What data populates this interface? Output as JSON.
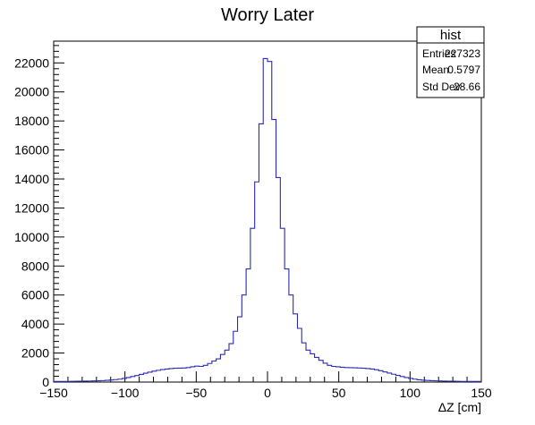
{
  "chart_data": {
    "type": "histogram",
    "title": "Worry Later",
    "xlabel": "ΔZ [cm]",
    "ylabel": "",
    "xlim": [
      -150,
      150
    ],
    "ylim": [
      0,
      23500
    ],
    "x_ticks": [
      -150,
      -100,
      -50,
      0,
      50,
      100,
      150
    ],
    "y_ticks": [
      0,
      2000,
      4000,
      6000,
      8000,
      10000,
      12000,
      14000,
      16000,
      18000,
      20000,
      22000
    ],
    "bin_width": 3,
    "line_color": "#2b2bb5",
    "bins": [
      {
        "x": -150,
        "y": 40
      },
      {
        "x": -147,
        "y": 40
      },
      {
        "x": -144,
        "y": 45
      },
      {
        "x": -141,
        "y": 45
      },
      {
        "x": -138,
        "y": 50
      },
      {
        "x": -135,
        "y": 55
      },
      {
        "x": -132,
        "y": 60
      },
      {
        "x": -129,
        "y": 65
      },
      {
        "x": -126,
        "y": 70
      },
      {
        "x": -123,
        "y": 80
      },
      {
        "x": -120,
        "y": 90
      },
      {
        "x": -117,
        "y": 100
      },
      {
        "x": -114,
        "y": 120
      },
      {
        "x": -111,
        "y": 140
      },
      {
        "x": -108,
        "y": 170
      },
      {
        "x": -105,
        "y": 200
      },
      {
        "x": -102,
        "y": 250
      },
      {
        "x": -99,
        "y": 310
      },
      {
        "x": -96,
        "y": 380
      },
      {
        "x": -93,
        "y": 450
      },
      {
        "x": -90,
        "y": 530
      },
      {
        "x": -87,
        "y": 610
      },
      {
        "x": -84,
        "y": 680
      },
      {
        "x": -81,
        "y": 750
      },
      {
        "x": -78,
        "y": 810
      },
      {
        "x": -75,
        "y": 860
      },
      {
        "x": -72,
        "y": 900
      },
      {
        "x": -69,
        "y": 930
      },
      {
        "x": -66,
        "y": 950
      },
      {
        "x": -63,
        "y": 960
      },
      {
        "x": -60,
        "y": 970
      },
      {
        "x": -57,
        "y": 1000
      },
      {
        "x": -54,
        "y": 1050
      },
      {
        "x": -51,
        "y": 1100
      },
      {
        "x": -48,
        "y": 1080
      },
      {
        "x": -45,
        "y": 1150
      },
      {
        "x": -42,
        "y": 1280
      },
      {
        "x": -39,
        "y": 1450
      },
      {
        "x": -36,
        "y": 1600
      },
      {
        "x": -33,
        "y": 1900
      },
      {
        "x": -30,
        "y": 2200
      },
      {
        "x": -27,
        "y": 2650
      },
      {
        "x": -24,
        "y": 3500
      },
      {
        "x": -21,
        "y": 4500
      },
      {
        "x": -18,
        "y": 6000
      },
      {
        "x": -15,
        "y": 7800
      },
      {
        "x": -12,
        "y": 10600
      },
      {
        "x": -9,
        "y": 13800
      },
      {
        "x": -6,
        "y": 17800
      },
      {
        "x": -3,
        "y": 22300
      },
      {
        "x": 0,
        "y": 22100
      },
      {
        "x": 3,
        "y": 18100
      },
      {
        "x": 6,
        "y": 14100
      },
      {
        "x": 9,
        "y": 10600
      },
      {
        "x": 12,
        "y": 7800
      },
      {
        "x": 15,
        "y": 6000
      },
      {
        "x": 18,
        "y": 4700
      },
      {
        "x": 21,
        "y": 3700
      },
      {
        "x": 24,
        "y": 2700
      },
      {
        "x": 27,
        "y": 2200
      },
      {
        "x": 30,
        "y": 1950
      },
      {
        "x": 33,
        "y": 1700
      },
      {
        "x": 36,
        "y": 1500
      },
      {
        "x": 39,
        "y": 1300
      },
      {
        "x": 42,
        "y": 1150
      },
      {
        "x": 45,
        "y": 1080
      },
      {
        "x": 48,
        "y": 1050
      },
      {
        "x": 51,
        "y": 1020
      },
      {
        "x": 54,
        "y": 1000
      },
      {
        "x": 57,
        "y": 990
      },
      {
        "x": 60,
        "y": 980
      },
      {
        "x": 63,
        "y": 970
      },
      {
        "x": 66,
        "y": 950
      },
      {
        "x": 69,
        "y": 930
      },
      {
        "x": 72,
        "y": 900
      },
      {
        "x": 75,
        "y": 850
      },
      {
        "x": 78,
        "y": 780
      },
      {
        "x": 81,
        "y": 700
      },
      {
        "x": 84,
        "y": 620
      },
      {
        "x": 87,
        "y": 540
      },
      {
        "x": 90,
        "y": 460
      },
      {
        "x": 93,
        "y": 380
      },
      {
        "x": 96,
        "y": 310
      },
      {
        "x": 99,
        "y": 250
      },
      {
        "x": 102,
        "y": 200
      },
      {
        "x": 105,
        "y": 160
      },
      {
        "x": 108,
        "y": 130
      },
      {
        "x": 111,
        "y": 110
      },
      {
        "x": 114,
        "y": 95
      },
      {
        "x": 117,
        "y": 85
      },
      {
        "x": 120,
        "y": 75
      },
      {
        "x": 123,
        "y": 65
      },
      {
        "x": 126,
        "y": 60
      },
      {
        "x": 129,
        "y": 55
      },
      {
        "x": 132,
        "y": 50
      },
      {
        "x": 135,
        "y": 45
      },
      {
        "x": 138,
        "y": 45
      },
      {
        "x": 141,
        "y": 40
      },
      {
        "x": 144,
        "y": 40
      },
      {
        "x": 147,
        "y": 40
      }
    ]
  },
  "stats_box": {
    "title": "hist",
    "rows": [
      {
        "label": "Entries",
        "value": "227323"
      },
      {
        "label": "Mean",
        "value": "0.5797"
      },
      {
        "label": "Std Dev",
        "value": "28.66"
      }
    ]
  }
}
